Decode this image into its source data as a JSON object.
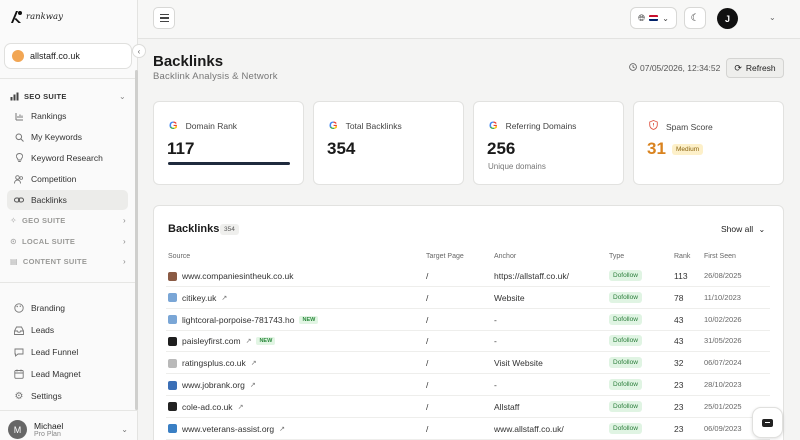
{
  "app": {
    "logo_text": "rankway"
  },
  "sidebar": {
    "site": "allstaff.co.uk",
    "seo_suite": {
      "label": "SEO SUITE",
      "items": [
        {
          "label": "Rankings",
          "icon": "rankings-icon"
        },
        {
          "label": "My Keywords",
          "icon": "search-icon"
        },
        {
          "label": "Keyword Research",
          "icon": "bulb-icon"
        },
        {
          "label": "Competition",
          "icon": "users-icon"
        },
        {
          "label": "Backlinks",
          "icon": "link-icon",
          "active": true
        }
      ]
    },
    "other_suites": [
      {
        "label": "GEO SUITE",
        "icon": "sparkle-icon"
      },
      {
        "label": "LOCAL SUITE",
        "icon": "pin-icon"
      },
      {
        "label": "CONTENT SUITE",
        "icon": "document-icon"
      }
    ],
    "tools": [
      {
        "label": "Branding",
        "icon": "palette-icon"
      },
      {
        "label": "Leads",
        "icon": "inbox-icon"
      },
      {
        "label": "Lead Funnel",
        "icon": "chat-icon"
      },
      {
        "label": "Lead Magnet",
        "icon": "calendar-icon"
      },
      {
        "label": "Settings",
        "icon": "gear-icon"
      }
    ],
    "user": {
      "initial": "M",
      "name": "Michael",
      "plan": "Pro Plan"
    }
  },
  "topbar": {
    "user_initial": "J"
  },
  "header": {
    "title": "Backlinks",
    "subtitle": "Backlink Analysis & Network",
    "timestamp": "07/05/2026, 12:34:52",
    "refresh_label": "Refresh"
  },
  "cards": {
    "domain_rank": {
      "label": "Domain Rank",
      "value": "117",
      "bar_fraction": 1.0
    },
    "total_backlinks": {
      "label": "Total Backlinks",
      "value": "354"
    },
    "referring_domains": {
      "label": "Referring Domains",
      "value": "256",
      "note": "Unique domains"
    },
    "spam_score": {
      "label": "Spam Score",
      "value": "31",
      "badge": "Medium"
    }
  },
  "colors": {
    "accent_orange": "#d9831f",
    "dofollow_green": "#2a7d3a",
    "new_green": "#2c8a3d"
  },
  "table": {
    "title": "Backlinks",
    "count": "354",
    "show_all": "Show all",
    "columns": [
      "Source",
      "Target Page",
      "Anchor",
      "Type",
      "Rank",
      "First Seen"
    ],
    "rows": [
      {
        "source": "www.companiesintheuk.co.uk",
        "external": false,
        "new": "",
        "target": "/",
        "anchor": "https://allstaff.co.uk/",
        "type": "Dofollow",
        "rank": "113",
        "first_seen": "26/08/2025",
        "fav_color": "#8a5a44"
      },
      {
        "source": "citikey.uk",
        "external": true,
        "new": "",
        "target": "/",
        "anchor": "Website",
        "type": "Dofollow",
        "rank": "78",
        "first_seen": "11/10/2023",
        "fav_color": "#7aa6d6"
      },
      {
        "source": "lightcoral-porpoise-781743.ho",
        "external": false,
        "new": "NEW",
        "target": "/",
        "anchor": "-",
        "type": "Dofollow",
        "rank": "43",
        "first_seen": "10/02/2026",
        "fav_color": "#7aa6d6"
      },
      {
        "source": "paisleyfirst.com",
        "external": true,
        "new": "NEW",
        "target": "/",
        "anchor": "-",
        "type": "Dofollow",
        "rank": "43",
        "first_seen": "31/05/2026",
        "fav_color": "#1e1e1e"
      },
      {
        "source": "ratingsplus.co.uk",
        "external": true,
        "new": "",
        "target": "/",
        "anchor": "Visit Website",
        "type": "Dofollow",
        "rank": "32",
        "first_seen": "06/07/2024",
        "fav_color": "#b9b9b9"
      },
      {
        "source": "www.jobrank.org",
        "external": true,
        "new": "",
        "target": "/",
        "anchor": "-",
        "type": "Dofollow",
        "rank": "23",
        "first_seen": "28/10/2023",
        "fav_color": "#3b6fb6"
      },
      {
        "source": "cole-ad.co.uk",
        "external": true,
        "new": "",
        "target": "/",
        "anchor": "Allstaff",
        "type": "Dofollow",
        "rank": "23",
        "first_seen": "25/01/2025",
        "fav_color": "#222222"
      },
      {
        "source": "www.veterans-assist.org",
        "external": true,
        "new": "",
        "target": "/",
        "anchor": "www.allstaff.co.uk/",
        "type": "Dofollow",
        "rank": "23",
        "first_seen": "06/09/2023",
        "fav_color": "#3a7fc4"
      }
    ]
  }
}
